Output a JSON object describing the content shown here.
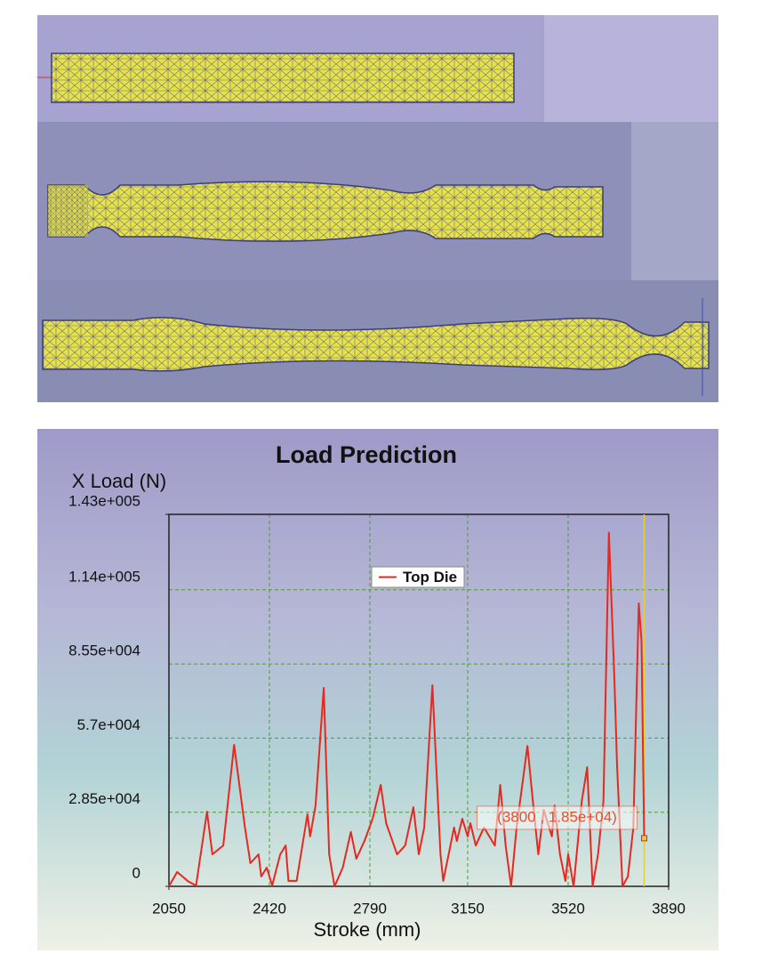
{
  "chart_data": {
    "type": "line",
    "title": "Load Prediction",
    "y_label": "X Load (N)",
    "x_label": "Stroke (mm)",
    "annotation": "(3800 , 1.85e+04)",
    "xlim": [
      2050,
      3890
    ],
    "xticks": [
      2050,
      2420,
      2790,
      3150,
      3520,
      3890
    ],
    "ylim": [
      0,
      143000
    ],
    "yticks": [
      0,
      {
        "value": 28500,
        "label": "2.85e+004"
      },
      {
        "value": 57000,
        "label": "5.7e+004"
      },
      {
        "value": 85500,
        "label": "8.55e+004"
      },
      {
        "value": 114000,
        "label": "1.14e+005"
      },
      {
        "value": 143000,
        "label": "1.43e+005"
      }
    ],
    "grid": true,
    "legend": "top",
    "series": [
      {
        "name": "Top Die",
        "color": "#e8281e",
        "x": [
          2050,
          2080,
          2120,
          2150,
          2190,
          2210,
          2250,
          2290,
          2330,
          2350,
          2380,
          2390,
          2410,
          2430,
          2460,
          2480,
          2490,
          2520,
          2560,
          2570,
          2590,
          2620,
          2640,
          2660,
          2690,
          2720,
          2740,
          2770,
          2800,
          2830,
          2850,
          2890,
          2920,
          2950,
          2970,
          2990,
          3020,
          3050,
          3060,
          3100,
          3110,
          3130,
          3150,
          3160,
          3180,
          3210,
          3250,
          3270,
          3290,
          3310,
          3330,
          3370,
          3390,
          3410,
          3430,
          3460,
          3470,
          3490,
          3510,
          3520,
          3540,
          3570,
          3590,
          3610,
          3630,
          3650,
          3670,
          3690,
          3700,
          3720,
          3740,
          3760,
          3780,
          3790,
          3800
        ],
        "values": [
          0,
          5500,
          2000,
          300,
          28700,
          12300,
          15700,
          54400,
          22600,
          8900,
          12300,
          3800,
          7200,
          300,
          12300,
          15700,
          2100,
          2100,
          27700,
          19200,
          31100,
          76300,
          12300,
          0,
          7200,
          20900,
          10600,
          17400,
          26000,
          39000,
          24300,
          12300,
          15700,
          30400,
          12300,
          22600,
          77300,
          12300,
          2100,
          22600,
          17400,
          26000,
          19200,
          24300,
          15700,
          22600,
          15700,
          39000,
          15700,
          0,
          22600,
          54000,
          32800,
          12300,
          29400,
          19200,
          31100,
          12300,
          2100,
          12300,
          0,
          32800,
          45800,
          0,
          12300,
          32800,
          136000,
          80700,
          46500,
          0,
          3800,
          22600,
          108800,
          94400,
          18500
        ]
      }
    ]
  }
}
